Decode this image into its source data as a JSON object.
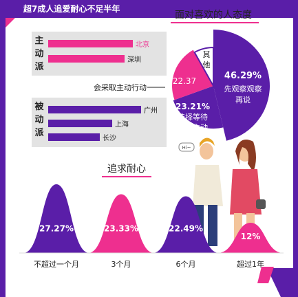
{
  "banner": "超7成人追爱耐心不足半年",
  "section1_title": "面对喜欢的人态度",
  "section2_title": "追求耐心",
  "colors": {
    "purple": "#5a1ea8",
    "pink": "#ee2f8f",
    "grey": "#e3e3e3",
    "dark": "#222222"
  },
  "groups": [
    {
      "label": [
        "主",
        "动",
        "派"
      ],
      "cities": [
        "北京",
        "深圳"
      ],
      "city_values": [
        0.82,
        0.74
      ],
      "city_color": "pink"
    },
    {
      "label": [
        "被",
        "动",
        "派"
      ],
      "cities": [
        "广州",
        "上海",
        "长沙"
      ],
      "city_values": [
        0.9,
        0.62,
        0.5
      ],
      "city_color": "purple"
    }
  ],
  "chart_data": [
    {
      "type": "pie",
      "title": "面对喜欢的人态度",
      "slices": [
        {
          "label": "先观察观察再说",
          "value": 46.29,
          "value_label": "46.29%",
          "color": "purple"
        },
        {
          "label": "选择等待对方主动",
          "value": 23.21,
          "value_label": "23.21%",
          "color": "purple-light"
        },
        {
          "label": "会采取主动行动",
          "value": 22.37,
          "value_label": "22.37",
          "color": "pink"
        },
        {
          "label": "其他",
          "value": 8.13,
          "value_label": "",
          "color": "white"
        }
      ],
      "annotation": "会采取主动行动"
    },
    {
      "type": "bar",
      "title": "追求耐心",
      "categories": [
        "不超过一个月",
        "3个月",
        "6个月",
        "超过1年"
      ],
      "values": [
        27.27,
        23.33,
        22.49,
        12
      ],
      "value_labels": [
        "27.27%",
        "23.33%",
        "22.49%",
        "12%"
      ],
      "colors": [
        "purple",
        "pink",
        "purple",
        "pink"
      ]
    }
  ]
}
